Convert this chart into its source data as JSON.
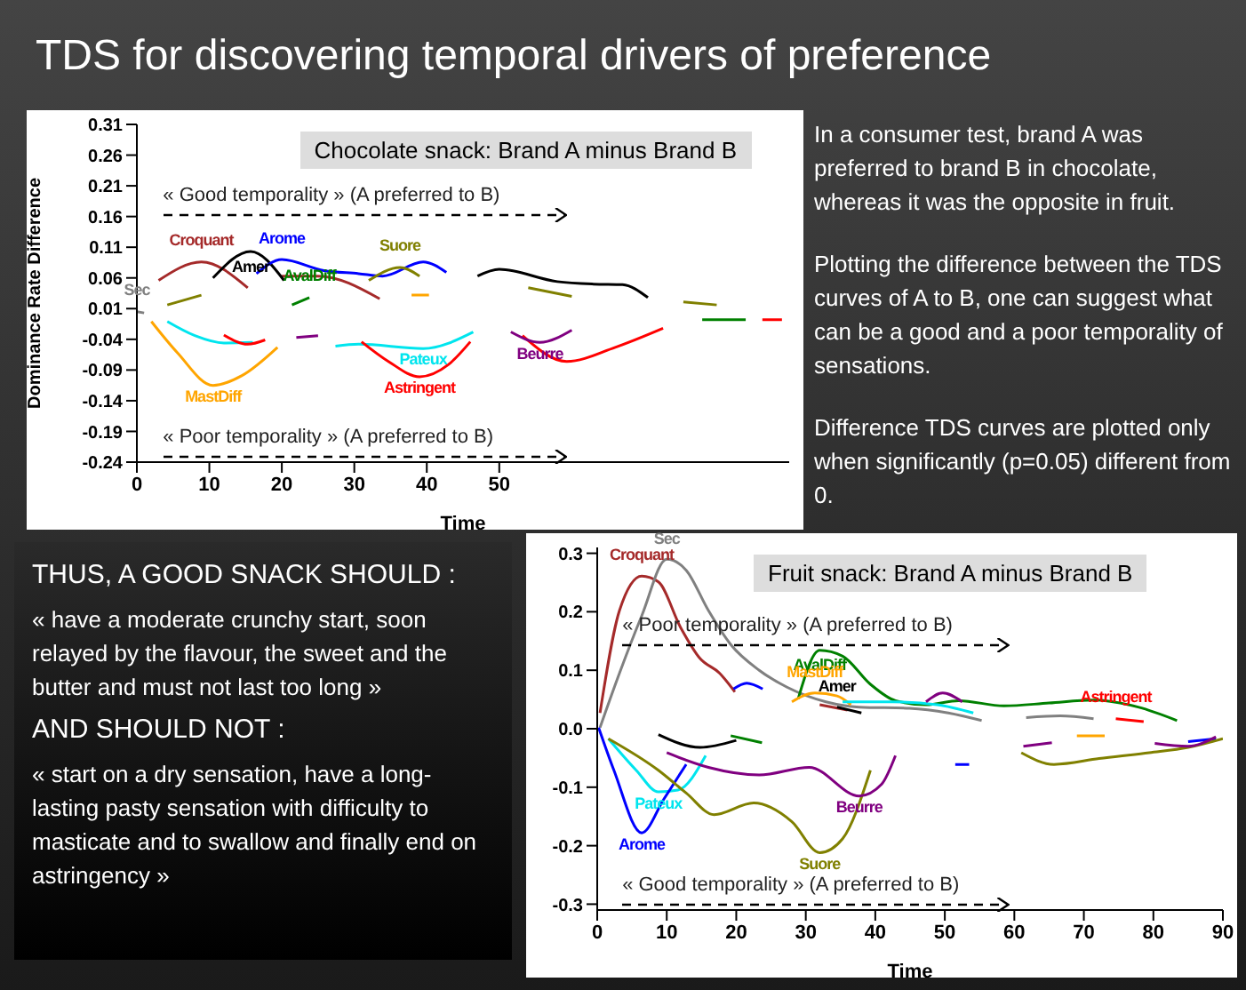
{
  "chart_data": [
    {
      "type": "other",
      "title": "TDS for discovering temporal drivers of preference"
    },
    {
      "type": "line",
      "title": "Chocolate snack: Brand A minus Brand B",
      "xlabel": "Time",
      "ylabel": "Dominance Rate Difference",
      "xlim": [
        0,
        90
      ],
      "xticks": [
        0,
        10,
        20,
        30,
        40,
        50
      ],
      "ylim": [
        -0.24,
        0.31
      ],
      "yticks": [
        0.31,
        0.26,
        0.21,
        0.16,
        0.11,
        0.06,
        0.01,
        -0.04,
        -0.09,
        -0.14,
        -0.19,
        -0.24
      ],
      "annotations": [
        "« Good temporality » (A preferred to B)",
        "« Poor temporality » (A preferred to B)"
      ],
      "series": [
        {
          "name": "Croquant",
          "color": "#a52a2a",
          "x": [
            3,
            8.9,
            15.3,
            17,
            20,
            25,
            33.5
          ],
          "values": [
            0.056,
            0.086,
            0.044,
            null,
            0.063,
            0.063,
            0.026
          ]
        },
        {
          "name": "Amer",
          "color": "#000000",
          "x": [
            10.5,
            15.7,
            20.3,
            33,
            47,
            50,
            58,
            63,
            67,
            70.5
          ],
          "values": [
            0.06,
            0.103,
            0.056,
            null,
            0.063,
            0.074,
            0.054,
            0.05,
            0.049,
            0.028
          ]
        },
        {
          "name": "Arome",
          "color": "#0000ff",
          "x": [
            16.5,
            20,
            25.8,
            30.6,
            33.9,
            39.5,
            42.7
          ],
          "values": [
            0.067,
            0.09,
            0.072,
            0.067,
            0.063,
            0.086,
            0.069
          ]
        },
        {
          "name": "Suore",
          "color": "#808000",
          "x": [
            4.2,
            8.9,
            20,
            32,
            36.3,
            39,
            46,
            54,
            60,
            68,
            75.4,
            80
          ],
          "values": [
            0.016,
            0.032,
            null,
            0.056,
            0.077,
            0.063,
            null,
            0.044,
            0.03,
            null,
            0.021,
            0.016
          ]
        },
        {
          "name": "AvalDiff",
          "color": "#008000",
          "x": [
            21.4,
            23.8,
            50,
            78,
            84
          ],
          "values": [
            0.016,
            0.028,
            null,
            -0.008,
            -0.008
          ]
        },
        {
          "name": "Sec",
          "color": "#808080",
          "x": [
            0,
            1
          ],
          "values": [
            0.005,
            0.003
          ]
        },
        {
          "name": "MastDiff",
          "color": "#ffa500",
          "x": [
            2,
            5.6,
            10.5,
            14.5,
            19.4,
            30,
            37.9,
            40.3
          ],
          "values": [
            -0.011,
            -0.062,
            -0.115,
            -0.099,
            -0.053,
            null,
            0.032,
            0.032
          ]
        },
        {
          "name": "Pateux",
          "color": "#00e5ee",
          "x": [
            4.2,
            8,
            12,
            16,
            22,
            27.4,
            30.6,
            39.5,
            46.4
          ],
          "values": [
            -0.011,
            -0.034,
            -0.046,
            -0.045,
            null,
            -0.051,
            -0.048,
            -0.055,
            -0.028
          ]
        },
        {
          "name": "Astringent",
          "color": "#ff0000",
          "x": [
            12,
            15.3,
            17.7,
            25,
            31,
            34.7,
            39,
            43,
            46,
            50,
            53.2,
            59.3,
            66,
            72.6,
            80,
            86.3,
            89
          ],
          "values": [
            -0.033,
            -0.048,
            -0.041,
            null,
            -0.044,
            -0.076,
            -0.101,
            -0.081,
            -0.044,
            null,
            -0.034,
            -0.076,
            -0.053,
            -0.022,
            null,
            -0.008,
            -0.008
          ]
        },
        {
          "name": "Beurre",
          "color": "#800080",
          "x": [
            22,
            25,
            40,
            51.6,
            55.6,
            60
          ],
          "values": [
            -0.037,
            -0.034,
            null,
            -0.028,
            -0.045,
            -0.025
          ]
        }
      ]
    },
    {
      "type": "other",
      "annotations": [
        "In a consumer test, brand A was preferred to brand B in chocolate, whereas it was the opposite in fruit.",
        "Plotting the difference between the TDS curves of A to B, one can suggest what can be a good and a poor temporality of sensations.",
        "Difference TDS curves are plotted only when significantly (p=0.05) different from 0."
      ]
    },
    {
      "type": "line",
      "title": "Fruit snack: Brand A minus Brand B",
      "xlabel": "Time",
      "xlim": [
        0,
        90
      ],
      "xticks": [
        0,
        10,
        20,
        30,
        40,
        50,
        60,
        70,
        80,
        90
      ],
      "ylim": [
        -0.31,
        0.31
      ],
      "yticks": [
        -0.3,
        -0.2,
        -0.1,
        {
          "value": 0,
          "label": "0.0"
        },
        0.1,
        0.2,
        0.3
      ],
      "annotations": [
        "« Poor temporality » (A preferred to B)",
        "« Good temporality » (A preferred to B)"
      ],
      "series": [
        {
          "name": "Croquant",
          "color": "#a52a2a",
          "x": [
            0.4,
            3.2,
            6.4,
            8.8,
            12,
            14.8,
            17.6,
            19.8,
            26,
            32,
            36
          ],
          "values": [
            0.027,
            0.202,
            0.261,
            0.251,
            0.173,
            0.12,
            0.095,
            0.063,
            null,
            0.041,
            0.032
          ]
        },
        {
          "name": "Sec",
          "color": "#808080",
          "x": [
            0.4,
            3.2,
            6.4,
            10,
            12.8,
            16,
            19.2,
            23.3,
            27.3,
            32.9,
            37.7,
            44.9,
            50.5,
            55.3,
            58,
            61.7,
            66.6,
            71.4
          ],
          "values": [
            0.002,
            0.095,
            0.193,
            0.29,
            0.271,
            0.202,
            0.144,
            0.1,
            0.071,
            0.046,
            0.037,
            0.035,
            0.027,
            0.014,
            null,
            0.019,
            0.022,
            0.017
          ]
        },
        {
          "name": "AvalDiff",
          "color": "#008000",
          "x": [
            19.2,
            23.7,
            26,
            28.9,
            32,
            35.3,
            39.3,
            42.9,
            47.3,
            52,
            58.5,
            65,
            71.4,
            77.8,
            83.4
          ],
          "values": [
            -0.012,
            -0.024,
            null,
            0.051,
            0.134,
            0.124,
            0.076,
            0.048,
            0.041,
            0.048,
            0.039,
            0.044,
            0.049,
            0.037,
            0.014
          ]
        },
        {
          "name": "MastDiff",
          "color": "#ffa500",
          "x": [
            28,
            31.3,
            34.5,
            36.5,
            50,
            69,
            73
          ],
          "values": [
            0.046,
            0.061,
            0.056,
            0.041,
            null,
            -0.012,
            -0.012
          ]
        },
        {
          "name": "Pateux",
          "color": "#00e5ee",
          "x": [
            1.6,
            5.6,
            8.8,
            11.6,
            15.6,
            25,
            35.3,
            42.5,
            48.9,
            54.1
          ],
          "values": [
            -0.017,
            -0.071,
            -0.108,
            -0.105,
            -0.046,
            null,
            0.046,
            0.046,
            0.041,
            0.027
          ]
        },
        {
          "name": "Arome",
          "color": "#0000ff",
          "x": [
            0.2,
            2.4,
            6.4,
            9.6,
            12.8,
            30,
            51.5,
            53.5,
            70,
            85,
            89
          ],
          "values": [
            0.002,
            -0.071,
            -0.178,
            -0.12,
            -0.061,
            null,
            -0.061,
            -0.061,
            null,
            -0.022,
            -0.017
          ]
        },
        {
          "color": "#0000ff",
          "x": [
            19.6,
            21.5,
            23.8
          ],
          "values": [
            0.068,
            0.078,
            0.068
          ]
        },
        {
          "name": "Amer",
          "color": "#000000",
          "x": [
            8.8,
            14.8,
            20,
            27,
            34.5,
            38
          ],
          "values": [
            -0.01,
            -0.032,
            -0.02,
            null,
            0.037,
            0.027
          ]
        },
        {
          "name": "Suore",
          "color": "#808000",
          "x": [
            1.6,
            8.8,
            12.8,
            16.8,
            22.5,
            28,
            32,
            35.3,
            39.3,
            50,
            61,
            65.7,
            72.2,
            79.4,
            85,
            90
          ],
          "values": [
            -0.017,
            -0.071,
            -0.11,
            -0.147,
            -0.127,
            -0.159,
            -0.212,
            -0.188,
            -0.071,
            null,
            -0.041,
            -0.061,
            -0.051,
            -0.041,
            -0.032,
            -0.017
          ]
        },
        {
          "name": "Beurre",
          "color": "#800080",
          "x": [
            10,
            16,
            23.3,
            30.5,
            37.7,
            40.9,
            42.9,
            45,
            47.3,
            49.7,
            52.5,
            57,
            61.3,
            65.4,
            72,
            80.2,
            85,
            89
          ],
          "values": [
            -0.041,
            -0.066,
            -0.079,
            -0.066,
            -0.115,
            -0.095,
            -0.046,
            null,
            0.046,
            0.061,
            0.046,
            null,
            -0.03,
            -0.024,
            null,
            -0.025,
            -0.03,
            -0.014
          ]
        },
        {
          "name": "Astringent",
          "color": "#ff0000",
          "x": [
            74.6,
            78.6
          ],
          "values": [
            0.017,
            0.012
          ]
        }
      ]
    },
    {
      "type": "other",
      "annotations": [
        "THUS, A GOOD SNACK SHOULD :",
        "« have a moderate crunchy start, soon relayed by the flavour, the sweet and the butter and must not last too long »",
        "AND SHOULD NOT :",
        "« start on a dry sensation, have a long-lasting pasty sensation with difficulty to masticate and to swallow and finally end on astringency »"
      ]
    }
  ]
}
